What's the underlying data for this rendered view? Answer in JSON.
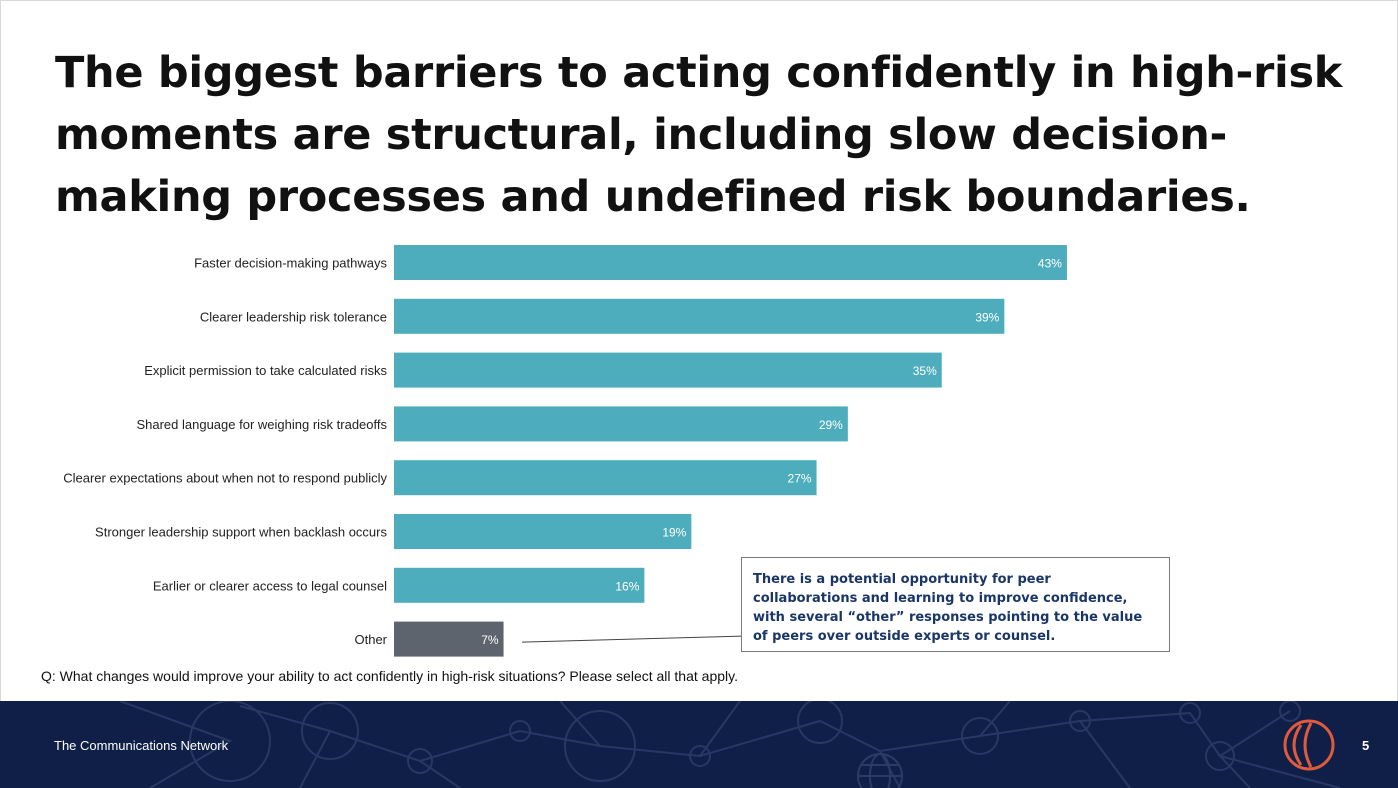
{
  "slide": {
    "title": "The biggest barriers to acting confidently in high-risk moments are structural, including slow decision-making processes and undefined risk boundaries.",
    "question": "Q: What changes would improve your ability to act confidently in high-risk situations? Please select all that apply.",
    "callout": "There is a potential opportunity for peer collaborations and learning to improve confidence, with several “other” responses pointing to the value of peers over outside experts or counsel.",
    "footer_org": "The Communications Network",
    "page_number": "5"
  },
  "colors": {
    "bar": "#4eadbc",
    "bar_other": "#5d646e",
    "footer": "#0f1f47",
    "logo": "#e05a3c",
    "callout_text": "#1a3668"
  },
  "icons": [
    "network-pattern-icon",
    "globe-icon",
    "logo-icon"
  ],
  "chart_data": {
    "type": "bar",
    "orientation": "horizontal",
    "categories": [
      "Faster decision-making pathways",
      "Clearer leadership risk tolerance",
      "Explicit permission to take calculated risks",
      "Shared language for weighing risk tradeoffs",
      "Clearer expectations about when not to respond publicly",
      "Stronger leadership support when backlash occurs",
      "Earlier or clearer access to legal counsel",
      "Other"
    ],
    "values": [
      43,
      39,
      35,
      29,
      27,
      19,
      16,
      7
    ],
    "labels": [
      "43%",
      "39%",
      "35%",
      "29%",
      "27%",
      "19%",
      "16%",
      "7%"
    ],
    "highlight_category": "Other",
    "title": "",
    "xlabel": "",
    "ylabel": "",
    "xlim": [
      0,
      100
    ]
  }
}
